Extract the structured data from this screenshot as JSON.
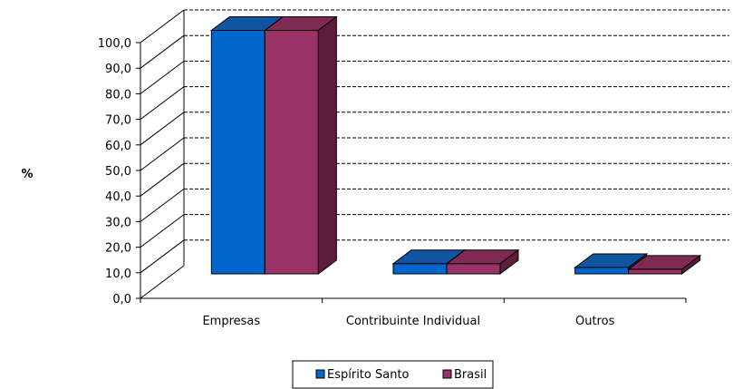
{
  "chart_data": {
    "type": "bar",
    "title": "",
    "xlabel": "",
    "ylabel": "%",
    "ylim": [
      0,
      100
    ],
    "ytick_step": 10,
    "ytick_labels": [
      "0,0",
      "10,0",
      "20,0",
      "30,0",
      "40,0",
      "50,0",
      "60,0",
      "70,0",
      "80,0",
      "90,0",
      "100,0"
    ],
    "categories": [
      "Empresas",
      "Contribuinte Individual",
      "Outros"
    ],
    "series": [
      {
        "name": "Espírito Santo",
        "values": [
          95.2,
          4.0,
          2.5
        ],
        "color": "#0066CC",
        "top": "#0F55A0",
        "side": "#0A3F77"
      },
      {
        "name": "Brasil",
        "values": [
          95.2,
          4.0,
          1.8
        ],
        "color": "#993366",
        "top": "#7E2A53",
        "side": "#5C1E3C"
      }
    ],
    "grid": true,
    "grid_style": "dashed",
    "legend_position": "bottom",
    "three_d": true
  }
}
